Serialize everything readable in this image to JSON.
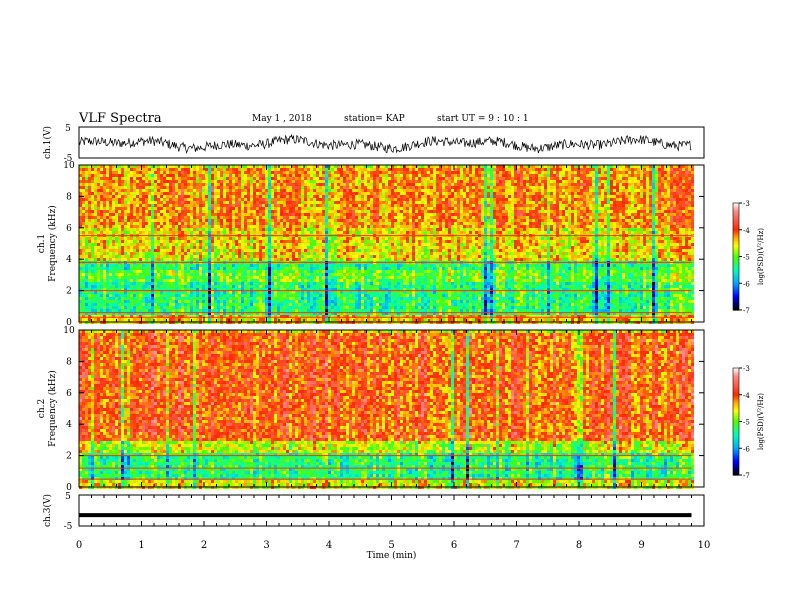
{
  "header": {
    "title": "VLF Spectra",
    "date": "May 1 , 2018",
    "station": "station= KAP",
    "start": "start UT = 9 : 10 : 1"
  },
  "chart_data": [
    {
      "type": "line",
      "panel": "ch1-waveform",
      "ylabel": "ch.1(V)",
      "ylim": [
        -5,
        5
      ],
      "ytick_labels": [
        "5",
        "-5"
      ],
      "xlim": [
        0,
        10
      ],
      "x_data_end": 9.8,
      "series_description": "noisy waveform oscillating roughly between -3 and 2 V",
      "mean_level": -0.5
    },
    {
      "type": "heatmap",
      "panel": "ch1-spectrogram",
      "ylabel": "ch.1\nFrequency (kHz)",
      "ylim": [
        0,
        10
      ],
      "ytick_labels": [
        "0",
        "2",
        "4",
        "6",
        "8",
        "10"
      ],
      "xlim": [
        0,
        10
      ],
      "x_data_end": 9.8,
      "bands": [
        {
          "from": 0.0,
          "to": 0.6,
          "level": -4.4
        },
        {
          "from": 0.6,
          "to": 2.6,
          "level": -5.3
        },
        {
          "from": 2.6,
          "to": 3.4,
          "level": -5.0
        },
        {
          "from": 3.4,
          "to": 4.0,
          "level": -5.3
        },
        {
          "from": 4.0,
          "to": 6.0,
          "level": -4.5
        },
        {
          "from": 6.0,
          "to": 10.0,
          "level": -4.2
        }
      ],
      "lines_khz": [
        0.3,
        0.6,
        2.0,
        3.8,
        5.5
      ]
    },
    {
      "type": "heatmap",
      "panel": "ch2-spectrogram",
      "ylabel": "ch.2\nFrequency (kHz)",
      "ylim": [
        0,
        10
      ],
      "ytick_labels": [
        "0",
        "2",
        "4",
        "6",
        "8",
        "10"
      ],
      "xlim": [
        0,
        10
      ],
      "x_data_end": 9.8,
      "bands": [
        {
          "from": 0.0,
          "to": 0.5,
          "level": -4.6
        },
        {
          "from": 0.5,
          "to": 2.2,
          "level": -5.3
        },
        {
          "from": 2.2,
          "to": 3.0,
          "level": -4.7
        },
        {
          "from": 3.0,
          "to": 10.0,
          "level": -4.0
        }
      ],
      "lines_khz": [
        0.5,
        1.2,
        2.0
      ]
    },
    {
      "type": "line",
      "panel": "ch3-waveform",
      "ylabel": "ch.3(V)",
      "ylim": [
        -5,
        5
      ],
      "ytick_labels": [
        "5",
        "-5"
      ],
      "xlim": [
        0,
        10
      ],
      "x_data_end": 9.8,
      "value": -1.5,
      "xlabel": "Time (min)",
      "xtick_labels": [
        "0",
        "1",
        "2",
        "3",
        "4",
        "5",
        "6",
        "7",
        "8",
        "9",
        "10"
      ]
    }
  ],
  "colorbar": {
    "label": "log(PSD)(V²/Hz)",
    "range": [
      -7,
      -3
    ],
    "tick_labels": [
      "-3",
      "-4",
      "-5",
      "-6",
      "-7"
    ],
    "colors": [
      "#ffffff",
      "#ff0000",
      "#ff9900",
      "#ffff00",
      "#00ff00",
      "#00ffff",
      "#0000ff",
      "#000000"
    ]
  }
}
